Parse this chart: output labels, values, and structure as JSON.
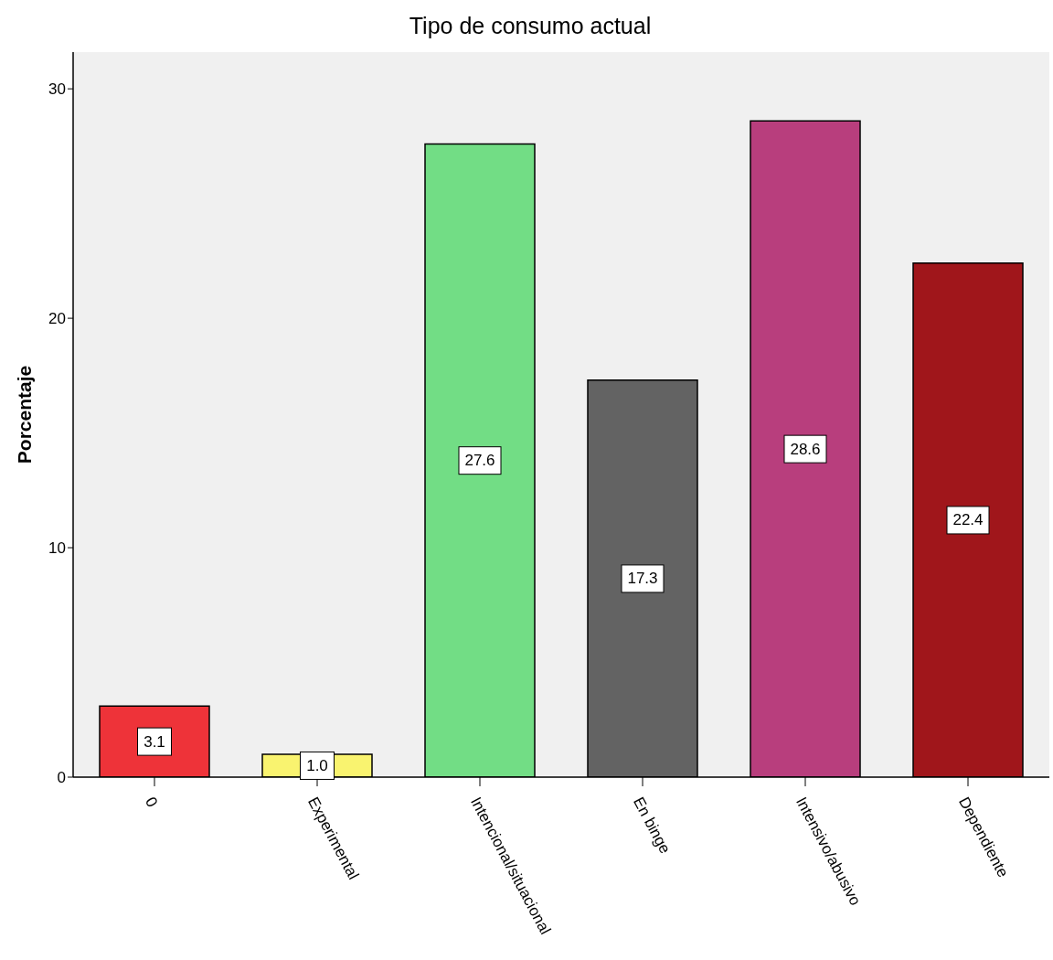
{
  "chart_data": {
    "type": "bar",
    "title": "Tipo de consumo actual",
    "ylabel": "Porcentaje",
    "categories": [
      "0",
      "Experimental",
      "Intencional/situacional",
      "En binge",
      "Intensivo/abusivo",
      "Dependiente"
    ],
    "values": [
      3.1,
      1.0,
      27.6,
      17.3,
      28.6,
      22.4
    ],
    "colors": [
      "#ee3339",
      "#f9f36f",
      "#72dd85",
      "#636363",
      "#b83e7d",
      "#a0161b"
    ],
    "value_labels": [
      "3.1",
      "1.0",
      "27.6",
      "17.3",
      "28.6",
      "22.4"
    ],
    "ylim": [
      0,
      31.6
    ],
    "yticks": [
      0,
      10,
      20,
      30
    ],
    "grid": false
  }
}
